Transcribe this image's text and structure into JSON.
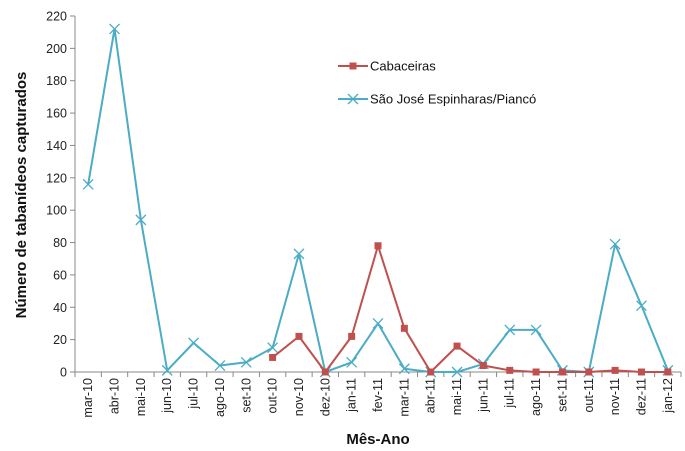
{
  "chart_data": {
    "type": "line",
    "title": "",
    "xlabel": "Mês-Ano",
    "ylabel": "Número de tabanídeos capturados",
    "ylim": [
      0,
      220
    ],
    "yticks": [
      0,
      20,
      40,
      60,
      80,
      100,
      120,
      140,
      160,
      180,
      200,
      220
    ],
    "grid": false,
    "legend_position": "top-right",
    "categories": [
      "mar-10",
      "abr-10",
      "mai-10",
      "jun-10",
      "jul-10",
      "ago-10",
      "set-10",
      "out-10",
      "nov-10",
      "dez-10",
      "jan-11",
      "fev-11",
      "mar-11",
      "abr-11",
      "mai-11",
      "jun-11",
      "jul-11",
      "ago-11",
      "set-11",
      "out-11",
      "nov-11",
      "dez-11",
      "jan-12"
    ],
    "series": [
      {
        "name": "Cabaceiras",
        "color": "#c0504d",
        "marker": "square",
        "values": [
          null,
          null,
          null,
          null,
          null,
          null,
          null,
          9,
          22,
          0,
          22,
          78,
          27,
          0,
          16,
          4,
          1,
          0,
          0,
          0,
          1,
          0,
          0
        ]
      },
      {
        "name": "São José Espinharas/Piancó",
        "color": "#4bacc6",
        "marker": "x",
        "values": [
          116,
          212,
          94,
          1,
          18,
          4,
          6,
          15,
          73,
          0,
          6,
          30,
          2,
          0,
          0,
          5,
          26,
          26,
          1,
          0,
          79,
          41,
          1
        ]
      }
    ]
  }
}
